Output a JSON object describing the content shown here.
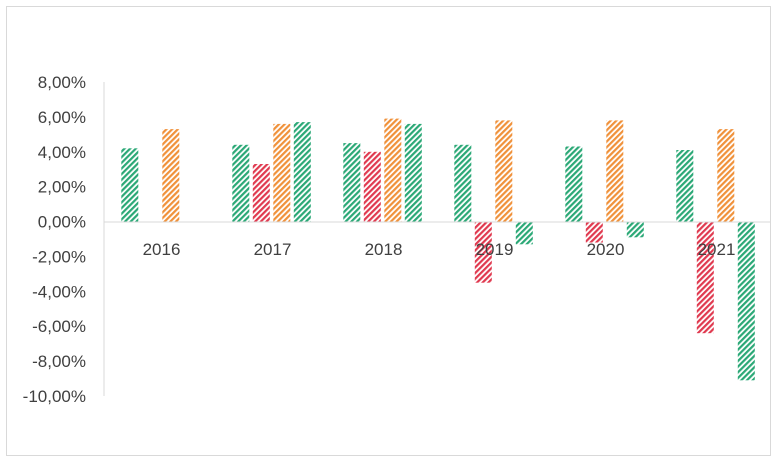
{
  "chart_data": {
    "type": "bar",
    "categories": [
      "2016",
      "2017",
      "2018",
      "2019",
      "2020",
      "2021"
    ],
    "series": [
      {
        "color": "#2aa876",
        "values": [
          4.2,
          4.4,
          4.5,
          4.4,
          4.3,
          4.1
        ]
      },
      {
        "color": "#e0394f",
        "values": [
          null,
          3.3,
          4.0,
          -3.5,
          -1.2,
          -6.4
        ]
      },
      {
        "color": "#f0913a",
        "values": [
          5.3,
          5.6,
          5.9,
          5.8,
          5.8,
          5.3
        ]
      },
      {
        "color": "#2aa876",
        "values": [
          null,
          5.7,
          5.6,
          -1.3,
          -0.9,
          -9.1
        ]
      }
    ],
    "yticks": [
      "8,00%",
      "6,00%",
      "4,00%",
      "2,00%",
      "0,00%",
      "-2,00%",
      "-4,00%",
      "-6,00%",
      "-8,00%",
      "-10,00%"
    ],
    "ylim": [
      -10,
      8
    ],
    "pattern": "diagonal-hatch",
    "grid": false,
    "legend": "none"
  }
}
